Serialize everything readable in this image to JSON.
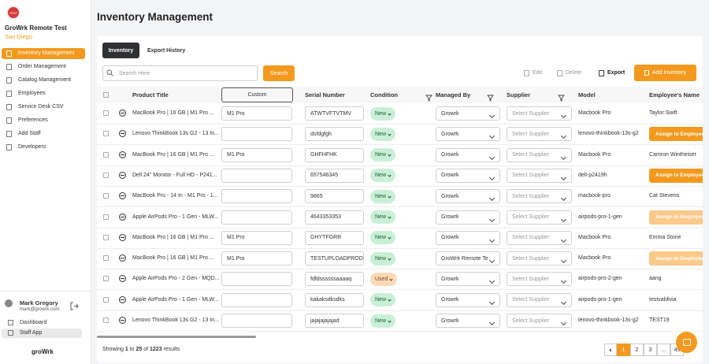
{
  "sidebar": {
    "logo_text": "TEST",
    "company": "GroWrk Remote Test",
    "location": "San Diego",
    "nav": [
      "Inventory Management",
      "Order Management",
      "Catalog Management",
      "Employees",
      "Service Desk CSV",
      "Preferences",
      "Add Staff",
      "Developers"
    ],
    "active_nav": 0,
    "user": {
      "name": "Mark Gregory",
      "email": "mark@growrk.com"
    },
    "links": [
      "Dashboard",
      "Staff App"
    ],
    "active_link": 1,
    "brand": "groWrk"
  },
  "header": {
    "title": "Inventory Management"
  },
  "tabs": [
    "Inventory",
    "Export History"
  ],
  "active_tab": 0,
  "toolbar": {
    "search_placeholder": "Search Here",
    "search_button": "Search",
    "actions": [
      "Edit",
      "Delete",
      "Export"
    ],
    "add_button": "Add Inventory"
  },
  "table": {
    "columns": [
      "Product Title",
      "Custom",
      "Serial Number",
      "Condition",
      "Managed By",
      "Supplier",
      "Model",
      "Employee's Name"
    ],
    "supplier_placeholder": "Select Supplier",
    "assign_button": "Assign to Employee",
    "rows": [
      {
        "product": "MacBook Pro | 16 GB | M1 Pro ...",
        "custom": "M1 Pro",
        "serial": "ATWTVFTVTMV",
        "condition": "New",
        "managed_by": "Growrk",
        "model": "Macbook Pro",
        "employee": "Taylor Swift"
      },
      {
        "product": "Lenovo ThinkBook 13s G2 - 13 In...",
        "custom": null,
        "serial": "dsfdgfgh",
        "condition": "New",
        "managed_by": "Growrk",
        "model": "lenovo-thinkbook-13s-g2",
        "employee": null,
        "assign_enabled": true
      },
      {
        "product": "MacBook Pro | 16 GB | M1 Pro ...",
        "custom": "M1 Pro",
        "serial": "GHFHFHK",
        "condition": "New",
        "managed_by": "Growrk",
        "model": "Macbook Pro",
        "employee": "Camron Wintheiser"
      },
      {
        "product": "Dell 24\" Monitor - Full HD - P241...",
        "custom": null,
        "serial": "657546345",
        "condition": "New",
        "managed_by": "Growrk",
        "model": "dell-p2419h",
        "employee": null,
        "assign_enabled": true
      },
      {
        "product": "MacBook Pro - 14 In - M1 Pro - 1...",
        "custom": null,
        "serial": "9865",
        "condition": "New",
        "managed_by": "Growrk",
        "model": "macbook-pro",
        "employee": "Cat Stevens"
      },
      {
        "product": "Apple AirPods Pro - 1 Gen - MLW...",
        "custom": null,
        "serial": "4643353353",
        "condition": "New",
        "managed_by": "Growrk",
        "model": "airpods-pro-1-gen",
        "employee": null,
        "assign_enabled": false
      },
      {
        "product": "MacBook Pro | 16 GB | M1 Pro ...",
        "custom": "M1 Pro",
        "serial": "GHYTFGRR",
        "condition": "New",
        "managed_by": "Growrk",
        "model": "Macbook Pro",
        "employee": "Emma Stone"
      },
      {
        "product": "MacBook Pro | 16 GB | M1 Pro ...",
        "custom": "M1 Pro",
        "serial": "TESTUPLOADPRODU",
        "condition": "New",
        "managed_by": "GroWrk Remote Te",
        "model": "Macbook Pro",
        "employee": null,
        "assign_enabled": false
      },
      {
        "product": "Apple AirPods Pro - 2 Gen - MQD...",
        "custom": null,
        "serial": "fdfdssssssaaaaq",
        "condition": "Used",
        "managed_by": "Growrk",
        "model": "airpods-pro-2-gen",
        "employee": "aang"
      },
      {
        "product": "Apple AirPods Pro - 1 Gen - MLW...",
        "custom": null,
        "serial": "kakaksdksdks",
        "condition": "New",
        "managed_by": "Growrk",
        "model": "airpods-pro-1-gen",
        "employee": "testvaldivia"
      },
      {
        "product": "Lenovo ThinkBook 13s G2 - 13 In...",
        "custom": null,
        "serial": "jajajajajajad",
        "condition": "New",
        "managed_by": "Growrk",
        "model": "lenovo-thinkbook-13s-g2",
        "employee": "TEST19"
      }
    ]
  },
  "footer": {
    "showing": "Showing",
    "from": "1",
    "to_word": "to",
    "to": "25",
    "of_word": "of",
    "total": "1223",
    "results": "results"
  },
  "pagination": {
    "pages": [
      "1",
      "2",
      "3",
      "...",
      "49"
    ],
    "current": 0
  }
}
